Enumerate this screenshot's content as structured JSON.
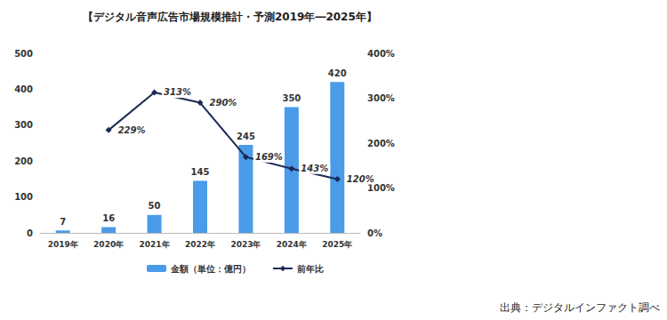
{
  "chart_data": {
    "type": "bar",
    "title": "【デジタル音声広告市場規模推計・予測2019年―2025年】",
    "categories": [
      "2019年",
      "2020年",
      "2021年",
      "2022年",
      "2023年",
      "2024年",
      "2025年"
    ],
    "series": [
      {
        "name": "金額（単位：億円）",
        "type": "bar",
        "color": "#4a9be8",
        "values": [
          7,
          16,
          50,
          145,
          245,
          350,
          420
        ]
      },
      {
        "name": "前年比",
        "type": "line",
        "color": "#1c2a55",
        "axis": "y2",
        "marker": "diamond",
        "values": [
          null,
          229,
          313,
          290,
          169,
          143,
          120
        ],
        "value_labels": [
          null,
          "229%",
          "313%",
          "290%",
          "169%",
          "143%",
          "120%"
        ]
      }
    ],
    "ylim": [
      0,
      500
    ],
    "yticks": [
      0,
      100,
      200,
      300,
      400,
      500
    ],
    "y2lim": [
      0,
      400
    ],
    "y2ticks": [
      {
        "value": 0,
        "label": "0%"
      },
      {
        "value": 100,
        "label": "100%"
      },
      {
        "value": 200,
        "label": "200%"
      },
      {
        "value": 300,
        "label": "300%"
      },
      {
        "value": 400,
        "label": "400%"
      }
    ],
    "grid": false,
    "legend": "bottom",
    "data_labels": true,
    "annotations": [
      "出典：デジタルインファクト調べ"
    ]
  }
}
